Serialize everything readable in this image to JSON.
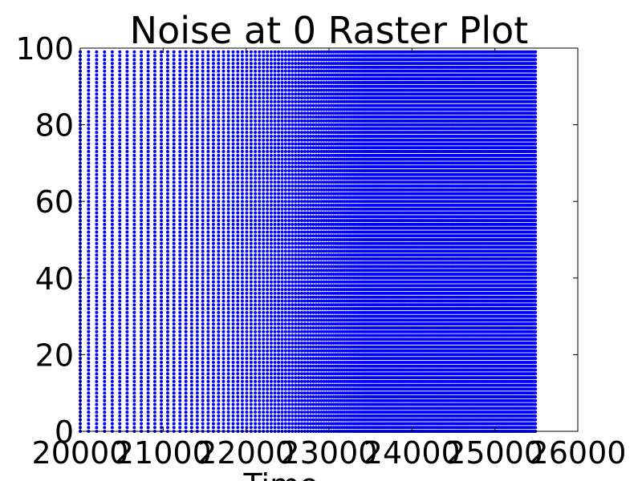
{
  "chart_data": {
    "type": "scatter",
    "title": "Noise at 0 Raster Plot",
    "xlabel": "Time",
    "ylabel": "",
    "xlim": [
      20000,
      26000
    ],
    "ylim": [
      0,
      100
    ],
    "x_ticks": [
      "20000",
      "21000",
      "22000",
      "23000",
      "24000",
      "25000",
      "26000"
    ],
    "y_ticks": [
      "0",
      "20",
      "40",
      "60",
      "80",
      "100"
    ],
    "grid": false,
    "series": [
      {
        "color": "#0000ff",
        "neuron_range": [
          0,
          99
        ],
        "spike_time_start": 20000,
        "spike_time_end": 25500,
        "initial_interval": 100,
        "final_interval": 18
      }
    ]
  }
}
